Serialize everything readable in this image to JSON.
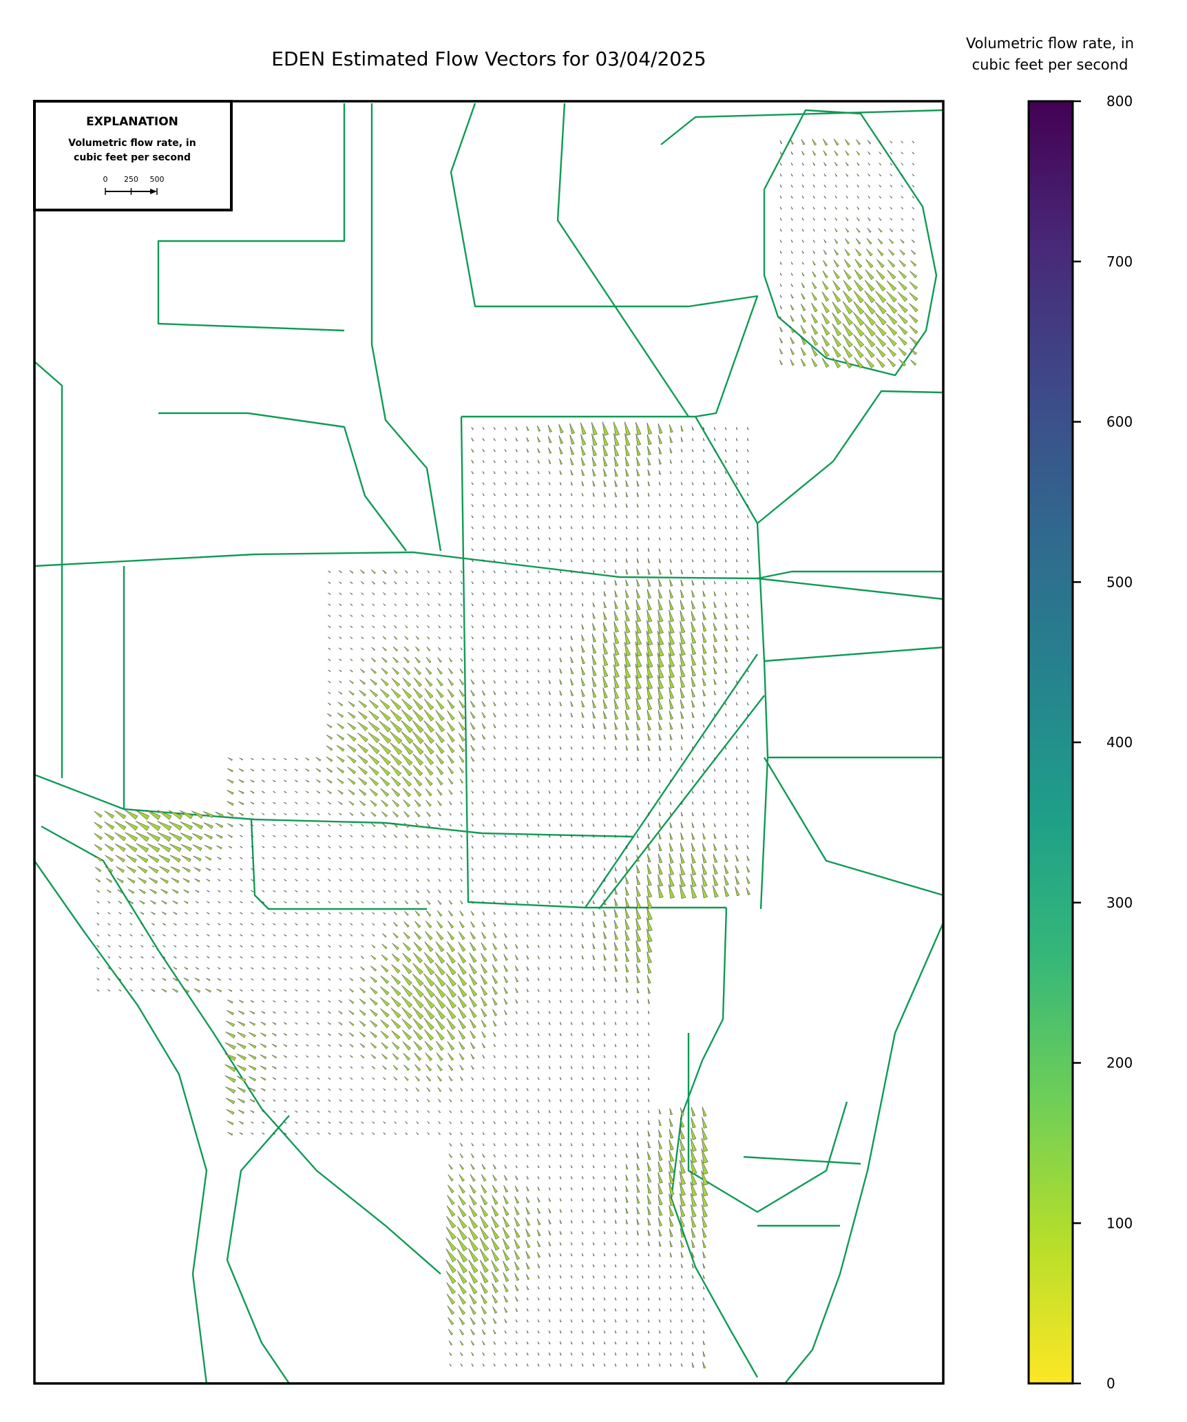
{
  "title": "EDEN Estimated Flow Vectors for 03/04/2025",
  "colorbar": {
    "label": [
      "Volumetric flow rate, in",
      "cubic feet per second"
    ],
    "lim": [
      0,
      800
    ],
    "ticks": [
      0,
      100,
      200,
      300,
      400,
      500,
      600,
      700,
      800
    ],
    "colormap": "viridis"
  },
  "explanation": {
    "title": "EXPLANATION",
    "label": [
      "Volumetric flow rate, in",
      "cubic feet per second"
    ],
    "scale_ticks": [
      0,
      250,
      500
    ]
  }
}
